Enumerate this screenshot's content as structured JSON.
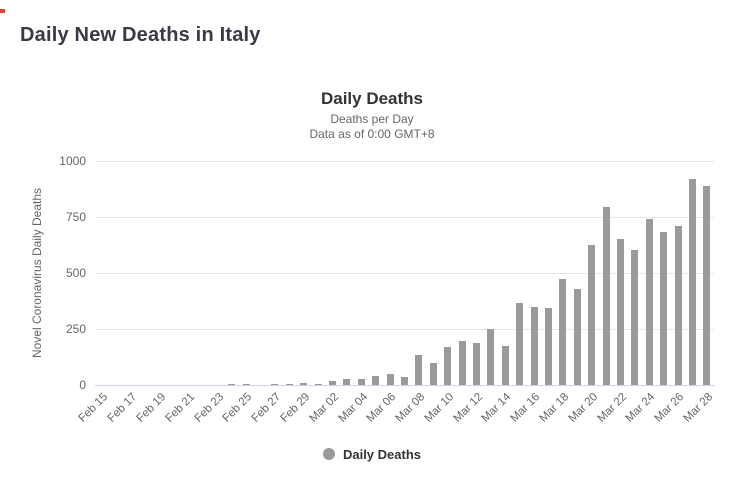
{
  "page": {
    "title": "Daily New Deaths in Italy"
  },
  "chart": {
    "title": "Daily Deaths",
    "subtitle_line1": "Deaths per Day",
    "subtitle_line2": "Data as of 0:00 GMT+8",
    "y_axis": {
      "title": "Novel Coronavirus Daily Deaths",
      "ticks": [
        0,
        250,
        500,
        750,
        1000
      ],
      "max": 1000
    },
    "legend": {
      "label": "Daily Deaths"
    },
    "colors": {
      "bar": "#9a9a9a",
      "gridline": "#e6e6e6",
      "axis_line": "#ccd6eb",
      "title_text": "#333333",
      "subtitle_text": "#666666",
      "label_text": "#666666",
      "page_title": "#3a3a47",
      "red_mark": "#e8413c"
    }
  },
  "chart_data": {
    "type": "bar",
    "title": "Daily Deaths",
    "subtitle": [
      "Deaths per Day",
      "Data as of 0:00 GMT+8"
    ],
    "xlabel": "",
    "ylabel": "Novel Coronavirus Daily Deaths",
    "ylim": [
      0,
      1000
    ],
    "yticks": [
      0,
      250,
      500,
      750,
      1000
    ],
    "grid": true,
    "legend_entries": [
      "Daily Deaths"
    ],
    "legend_position": "bottom",
    "bar_color": "#9a9a9a",
    "categories": [
      "Feb 15",
      "Feb 16",
      "Feb 17",
      "Feb 18",
      "Feb 19",
      "Feb 20",
      "Feb 21",
      "Feb 22",
      "Feb 23",
      "Feb 24",
      "Feb 25",
      "Feb 26",
      "Feb 27",
      "Feb 28",
      "Feb 29",
      "Mar 01",
      "Mar 02",
      "Mar 03",
      "Mar 04",
      "Mar 05",
      "Mar 06",
      "Mar 07",
      "Mar 08",
      "Mar 09",
      "Mar 10",
      "Mar 11",
      "Mar 12",
      "Mar 13",
      "Mar 14",
      "Mar 15",
      "Mar 16",
      "Mar 17",
      "Mar 18",
      "Mar 19",
      "Mar 20",
      "Mar 21",
      "Mar 22",
      "Mar 23",
      "Mar 24",
      "Mar 25",
      "Mar 26",
      "Mar 27",
      "Mar 28"
    ],
    "values": [
      0,
      0,
      0,
      0,
      0,
      0,
      1,
      1,
      1,
      4,
      3,
      2,
      5,
      4,
      8,
      5,
      18,
      27,
      28,
      41,
      49,
      36,
      133,
      97,
      168,
      196,
      189,
      250,
      175,
      368,
      349,
      345,
      475,
      427,
      627,
      793,
      651,
      601,
      743,
      683,
      712,
      919,
      889
    ],
    "x_tick_labels": [
      "Feb 15",
      "Feb 17",
      "Feb 19",
      "Feb 21",
      "Feb 23",
      "Feb 25",
      "Feb 27",
      "Feb 29",
      "Mar 02",
      "Mar 04",
      "Mar 06",
      "Mar 08",
      "Mar 10",
      "Mar 12",
      "Mar 14",
      "Mar 16",
      "Mar 18",
      "Mar 20",
      "Mar 22",
      "Mar 24",
      "Mar 26",
      "Mar 28"
    ],
    "x_tick_every": 2
  }
}
